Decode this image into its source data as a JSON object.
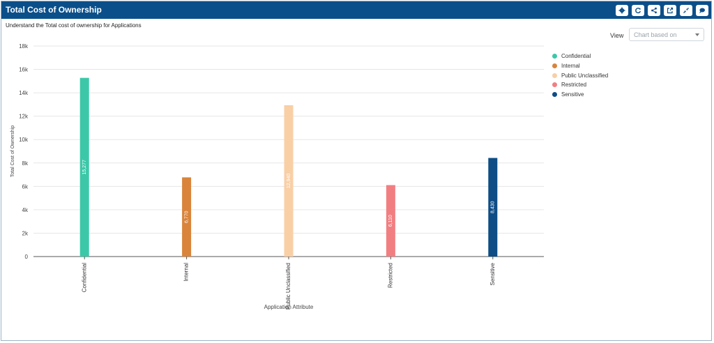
{
  "header": {
    "title": "Total Cost of Ownership"
  },
  "toolbar": [
    {
      "name": "settings-button",
      "icon": "gear-icon"
    },
    {
      "name": "refresh-button",
      "icon": "refresh-icon"
    },
    {
      "name": "share-button",
      "icon": "share-icon"
    },
    {
      "name": "open-external-button",
      "icon": "external-link-icon"
    },
    {
      "name": "collapse-button",
      "icon": "collapse-icon"
    },
    {
      "name": "comment-button",
      "icon": "comment-icon"
    }
  ],
  "subtitle": "Understand the Total cost of ownership for Applications",
  "view": {
    "label": "View",
    "placeholder": "Chart based on"
  },
  "chart_data": {
    "type": "bar",
    "categories": [
      "Confidential",
      "Internal",
      "Public Unclassified",
      "Restricted",
      "Sensitive"
    ],
    "values": [
      15277,
      6770,
      12940,
      6110,
      8430
    ],
    "data_labels": [
      "15,277",
      "6,770",
      "12,940",
      "6,110",
      "8,430"
    ],
    "colors": [
      "#3cc8a8",
      "#d9843a",
      "#f9cfa6",
      "#f17f82",
      "#0e4d86"
    ],
    "ylim": [
      0,
      18000
    ],
    "yticks": [
      0,
      2000,
      4000,
      6000,
      8000,
      10000,
      12000,
      14000,
      16000,
      18000
    ],
    "ytick_labels": [
      "0",
      "2k",
      "4k",
      "6k",
      "8k",
      "10k",
      "12k",
      "14k",
      "16k",
      "18k"
    ],
    "xlabel": "Application Attribute",
    "ylabel": "Total Cost of Ownership",
    "grid": true,
    "legend": {
      "position": "right",
      "entries": [
        "Confidential",
        "Internal",
        "Public Unclassified",
        "Restricted",
        "Sensitive"
      ]
    }
  }
}
